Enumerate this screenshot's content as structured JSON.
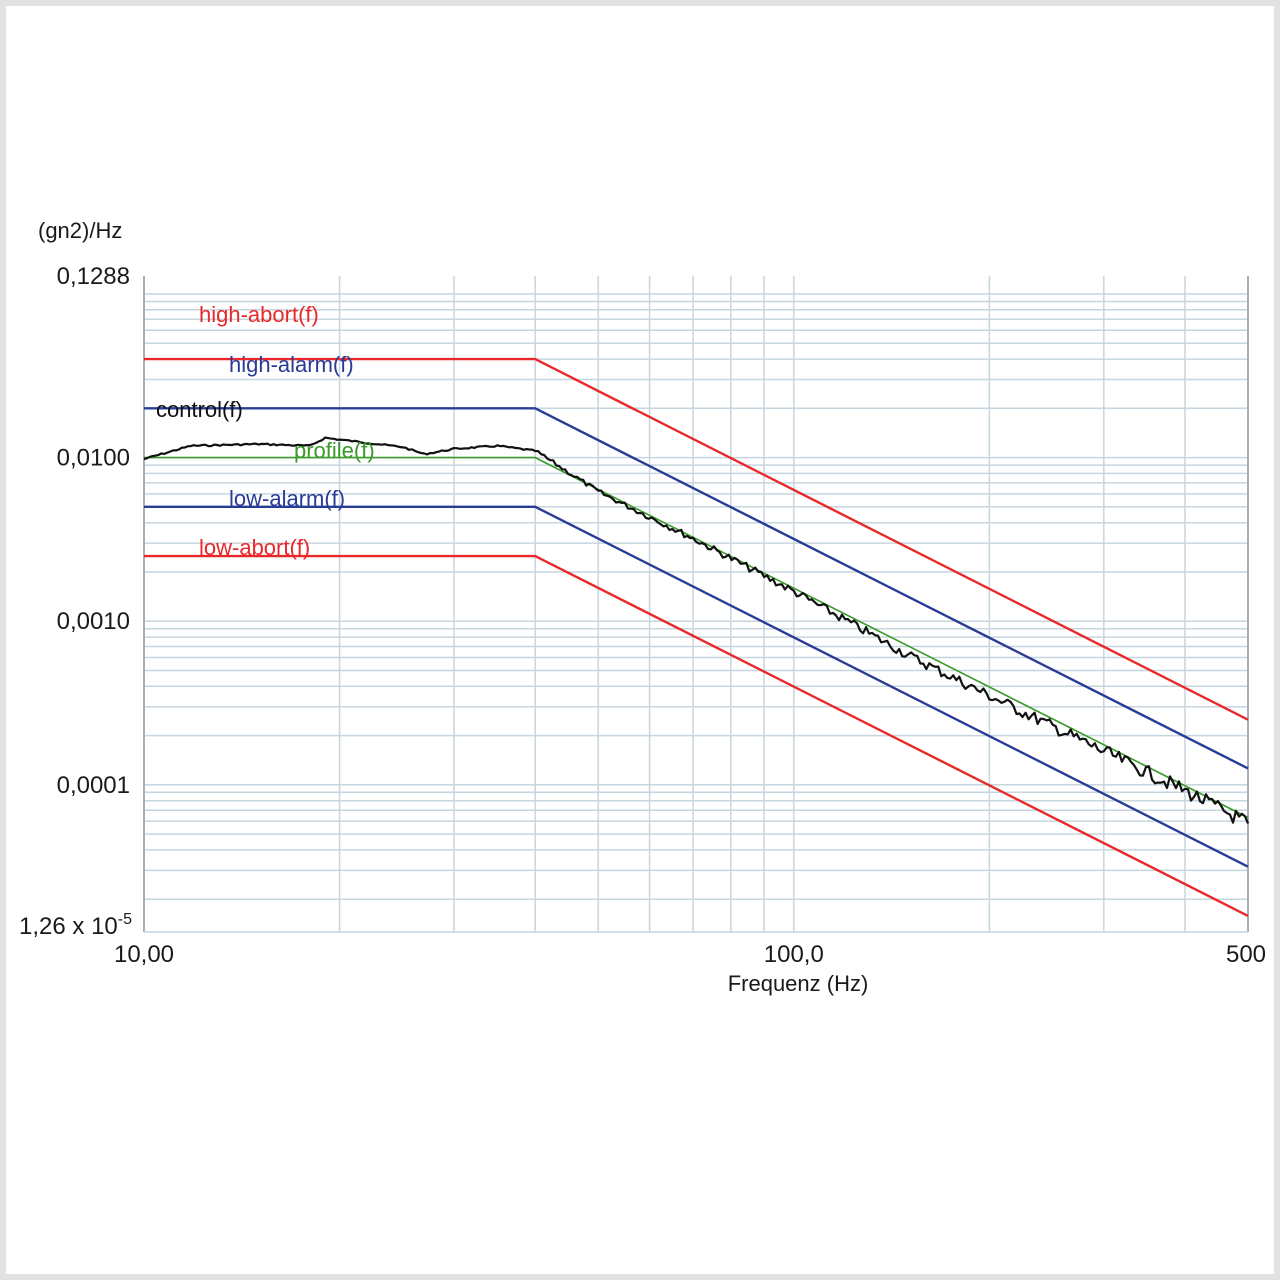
{
  "chart_data": {
    "type": "line",
    "title": "",
    "xlabel": "Frequenz (Hz)",
    "ylabel": "(gn2)/Hz",
    "x_scale": "log",
    "y_scale": "log",
    "xlim": [
      10,
      500
    ],
    "ylim": [
      1.26e-05,
      0.1288
    ],
    "x_ticks": [
      {
        "value": 10,
        "label": "10,00"
      },
      {
        "value": 100,
        "label": "100,0"
      },
      {
        "value": 500,
        "label": "500"
      }
    ],
    "y_ticks": [
      {
        "value": 0.1288,
        "label": "0,1288"
      },
      {
        "value": 0.01,
        "label": "0,0100"
      },
      {
        "value": 0.001,
        "label": "0,0010"
      },
      {
        "value": 0.0001,
        "label": "0,0001"
      },
      {
        "value": 1.26e-05,
        "label": "1,26 x 10",
        "exp": "-5"
      }
    ],
    "grid": true,
    "series": [
      {
        "name": "high-abort(f)",
        "color": "#e8282a",
        "x": [
          10,
          40,
          500
        ],
        "y": [
          0.04,
          0.04,
          0.00025
        ]
      },
      {
        "name": "high-alarm(f)",
        "color": "#283c96",
        "x": [
          10,
          40,
          500
        ],
        "y": [
          0.02,
          0.02,
          0.000126
        ]
      },
      {
        "name": "profile(f)",
        "color": "#3a9a2a",
        "x": [
          10,
          40,
          500
        ],
        "y": [
          0.01,
          0.01,
          6.3e-05
        ]
      },
      {
        "name": "control(f)",
        "color": "#111111",
        "x": [
          10,
          11.8,
          15,
          18,
          19,
          25,
          27,
          30,
          35,
          40,
          50,
          70,
          100,
          150,
          200,
          300,
          400,
          500
        ],
        "y": [
          0.0098,
          0.0118,
          0.0121,
          0.0118,
          0.0132,
          0.0116,
          0.0105,
          0.0113,
          0.0118,
          0.011,
          0.0062,
          0.0032,
          0.00152,
          0.00062,
          0.00035,
          0.00016,
          9.2e-05,
          5.8e-05
        ]
      },
      {
        "name": "low-alarm(f)",
        "color": "#283c96",
        "x": [
          10,
          40,
          500
        ],
        "y": [
          0.005,
          0.005,
          3.16e-05
        ]
      },
      {
        "name": "low-abort(f)",
        "color": "#e8282a",
        "x": [
          10,
          40,
          500
        ],
        "y": [
          0.0025,
          0.0025,
          1.58e-05
        ]
      }
    ]
  }
}
